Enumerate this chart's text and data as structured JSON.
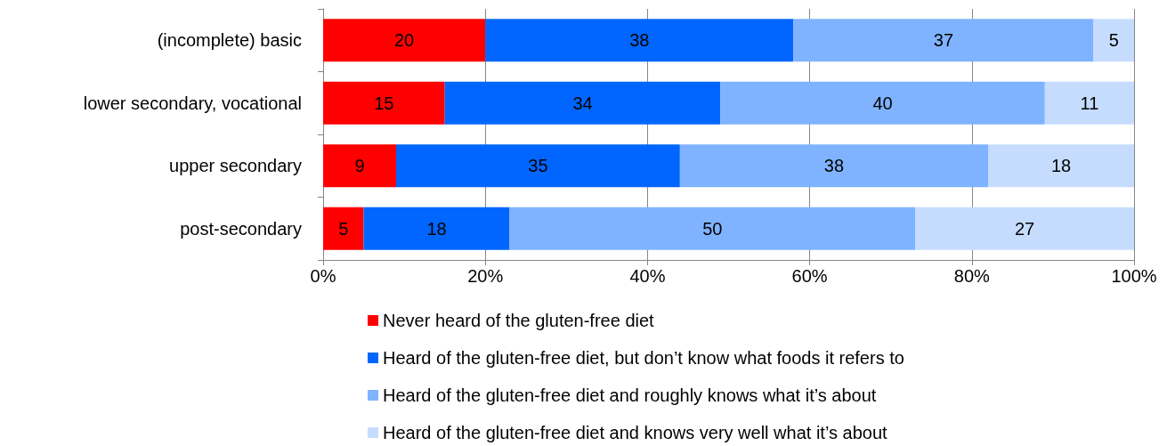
{
  "chart_data": {
    "type": "bar",
    "orientation": "horizontal",
    "stacked": true,
    "data_labels": true,
    "grid": "x",
    "legend": "bottom",
    "categories": [
      "(incomplete) basic",
      "lower secondary, vocational",
      "upper secondary",
      "post-secondary"
    ],
    "series": [
      {
        "name": "Never heard of the gluten-free diet",
        "color": "#ff0000",
        "values": [
          20,
          15,
          9,
          5
        ]
      },
      {
        "name": "Heard of the gluten-free diet, but don’t know what foods it refers to",
        "color": "#0066ff",
        "values": [
          38,
          34,
          35,
          18
        ]
      },
      {
        "name": "Heard of the gluten-free diet and roughly knows what it’s about",
        "color": "#80b3ff",
        "values": [
          37,
          40,
          38,
          50
        ]
      },
      {
        "name": "Heard of the gluten-free diet and knows very well what it’s about",
        "color": "#c6dcff",
        "values": [
          5,
          11,
          18,
          27
        ]
      }
    ],
    "xlim": [
      0,
      100
    ],
    "xticks": [
      {
        "value": 0,
        "label": "0%"
      },
      {
        "value": 20,
        "label": "20%"
      },
      {
        "value": 40,
        "label": "40%"
      },
      {
        "value": 60,
        "label": "60%"
      },
      {
        "value": 80,
        "label": "80%"
      },
      {
        "value": 100,
        "label": "100%"
      }
    ]
  }
}
